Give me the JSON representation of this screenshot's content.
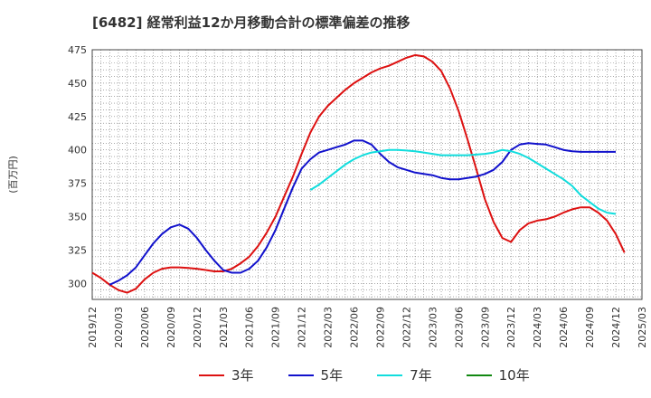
{
  "chart_data": {
    "type": "line",
    "title": "[6482]  経常利益12か月移動合計の標準偏差の推移",
    "ylabel": "(百万円)",
    "xlabel": "",
    "ylim": [
      288,
      475
    ],
    "yticks": [
      300,
      325,
      350,
      375,
      400,
      425,
      450,
      475
    ],
    "xlim": [
      "2019/12",
      "2025/03"
    ],
    "xticks": [
      "2019/12",
      "2020/03",
      "2020/06",
      "2020/09",
      "2020/12",
      "2021/03",
      "2021/06",
      "2021/09",
      "2021/12",
      "2022/03",
      "2022/06",
      "2022/09",
      "2022/12",
      "2023/03",
      "2023/06",
      "2023/09",
      "2023/12",
      "2024/03",
      "2024/06",
      "2024/09",
      "2024/12",
      "2025/03"
    ],
    "grid": true,
    "legend_position": "bottom",
    "series": [
      {
        "name": "3年",
        "color": "#dd1111",
        "points": [
          [
            "2019/12",
            308
          ],
          [
            "2020/01",
            304
          ],
          [
            "2020/02",
            299
          ],
          [
            "2020/03",
            295
          ],
          [
            "2020/04",
            293
          ],
          [
            "2020/05",
            296
          ],
          [
            "2020/06",
            303
          ],
          [
            "2020/07",
            308
          ],
          [
            "2020/08",
            311
          ],
          [
            "2020/09",
            312
          ],
          [
            "2020/10",
            312
          ],
          [
            "2020/11",
            311.5
          ],
          [
            "2020/12",
            311
          ],
          [
            "2021/01",
            310
          ],
          [
            "2021/02",
            309
          ],
          [
            "2021/03",
            309
          ],
          [
            "2021/04",
            311
          ],
          [
            "2021/05",
            315
          ],
          [
            "2021/06",
            320
          ],
          [
            "2021/07",
            328
          ],
          [
            "2021/08",
            338
          ],
          [
            "2021/09",
            350
          ],
          [
            "2021/10",
            365
          ],
          [
            "2021/11",
            380
          ],
          [
            "2021/12",
            397
          ],
          [
            "2022/01",
            413
          ],
          [
            "2022/02",
            425
          ],
          [
            "2022/03",
            433
          ],
          [
            "2022/04",
            439
          ],
          [
            "2022/05",
            445
          ],
          [
            "2022/06",
            450
          ],
          [
            "2022/07",
            454
          ],
          [
            "2022/08",
            458
          ],
          [
            "2022/09",
            461
          ],
          [
            "2022/10",
            463
          ],
          [
            "2022/11",
            466
          ],
          [
            "2022/12",
            469
          ],
          [
            "2023/01",
            471
          ],
          [
            "2023/02",
            470
          ],
          [
            "2023/03",
            466
          ],
          [
            "2023/04",
            459
          ],
          [
            "2023/05",
            446
          ],
          [
            "2023/06",
            429
          ],
          [
            "2023/07",
            408
          ],
          [
            "2023/08",
            386
          ],
          [
            "2023/09",
            363
          ],
          [
            "2023/10",
            346
          ],
          [
            "2023/11",
            334
          ],
          [
            "2023/12",
            331
          ],
          [
            "2024/01",
            340
          ],
          [
            "2024/02",
            345
          ],
          [
            "2024/03",
            347
          ],
          [
            "2024/04",
            348
          ],
          [
            "2024/05",
            350
          ],
          [
            "2024/06",
            353
          ],
          [
            "2024/07",
            355.5
          ],
          [
            "2024/08",
            357
          ],
          [
            "2024/09",
            357
          ],
          [
            "2024/10",
            353
          ],
          [
            "2024/11",
            347
          ],
          [
            "2024/12",
            337
          ],
          [
            "2025/01",
            323
          ]
        ]
      },
      {
        "name": "5年",
        "color": "#1111cc",
        "points": [
          [
            "2020/02",
            299
          ],
          [
            "2020/03",
            302
          ],
          [
            "2020/04",
            306
          ],
          [
            "2020/05",
            312
          ],
          [
            "2020/06",
            321
          ],
          [
            "2020/07",
            330
          ],
          [
            "2020/08",
            337
          ],
          [
            "2020/09",
            342
          ],
          [
            "2020/10",
            344
          ],
          [
            "2020/11",
            341
          ],
          [
            "2020/12",
            334
          ],
          [
            "2021/01",
            325
          ],
          [
            "2021/02",
            317
          ],
          [
            "2021/03",
            310
          ],
          [
            "2021/04",
            308
          ],
          [
            "2021/05",
            308
          ],
          [
            "2021/06",
            311
          ],
          [
            "2021/07",
            317
          ],
          [
            "2021/08",
            327
          ],
          [
            "2021/09",
            340
          ],
          [
            "2021/10",
            356
          ],
          [
            "2021/11",
            372
          ],
          [
            "2021/12",
            386
          ],
          [
            "2022/01",
            393
          ],
          [
            "2022/02",
            398
          ],
          [
            "2022/03",
            400
          ],
          [
            "2022/04",
            402
          ],
          [
            "2022/05",
            404
          ],
          [
            "2022/06",
            407
          ],
          [
            "2022/07",
            407
          ],
          [
            "2022/08",
            404
          ],
          [
            "2022/09",
            397
          ],
          [
            "2022/10",
            391
          ],
          [
            "2022/11",
            387
          ],
          [
            "2022/12",
            385
          ],
          [
            "2023/01",
            383
          ],
          [
            "2023/02",
            382
          ],
          [
            "2023/03",
            381
          ],
          [
            "2023/04",
            379
          ],
          [
            "2023/05",
            378
          ],
          [
            "2023/06",
            378
          ],
          [
            "2023/07",
            379
          ],
          [
            "2023/08",
            380
          ],
          [
            "2023/09",
            382
          ],
          [
            "2023/10",
            385
          ],
          [
            "2023/11",
            391
          ],
          [
            "2023/12",
            400
          ],
          [
            "2024/01",
            404
          ],
          [
            "2024/02",
            405
          ],
          [
            "2024/03",
            404.5
          ],
          [
            "2024/04",
            404
          ],
          [
            "2024/05",
            402
          ],
          [
            "2024/06",
            400
          ],
          [
            "2024/07",
            399
          ],
          [
            "2024/08",
            398.5
          ],
          [
            "2024/09",
            398.5
          ],
          [
            "2024/10",
            398.5
          ],
          [
            "2024/11",
            398.5
          ],
          [
            "2024/12",
            398.5
          ]
        ]
      },
      {
        "name": "7年",
        "color": "#11dddd",
        "points": [
          [
            "2022/01",
            370
          ],
          [
            "2022/02",
            374
          ],
          [
            "2022/03",
            379
          ],
          [
            "2022/04",
            384
          ],
          [
            "2022/05",
            389
          ],
          [
            "2022/06",
            393
          ],
          [
            "2022/07",
            396
          ],
          [
            "2022/08",
            398
          ],
          [
            "2022/09",
            399
          ],
          [
            "2022/10",
            400
          ],
          [
            "2022/11",
            400
          ],
          [
            "2022/12",
            399.5
          ],
          [
            "2023/01",
            399
          ],
          [
            "2023/02",
            398
          ],
          [
            "2023/03",
            397
          ],
          [
            "2023/04",
            396
          ],
          [
            "2023/05",
            396
          ],
          [
            "2023/06",
            396
          ],
          [
            "2023/07",
            396
          ],
          [
            "2023/08",
            396.5
          ],
          [
            "2023/09",
            397
          ],
          [
            "2023/10",
            398
          ],
          [
            "2023/11",
            400
          ],
          [
            "2023/12",
            399
          ],
          [
            "2024/01",
            397
          ],
          [
            "2024/02",
            394
          ],
          [
            "2024/03",
            390
          ],
          [
            "2024/04",
            386
          ],
          [
            "2024/05",
            382
          ],
          [
            "2024/06",
            378
          ],
          [
            "2024/07",
            373
          ],
          [
            "2024/08",
            366
          ],
          [
            "2024/09",
            361
          ],
          [
            "2024/10",
            356
          ],
          [
            "2024/11",
            353
          ],
          [
            "2024/12",
            352
          ]
        ]
      },
      {
        "name": "10年",
        "color": "#118811",
        "points": []
      }
    ]
  }
}
